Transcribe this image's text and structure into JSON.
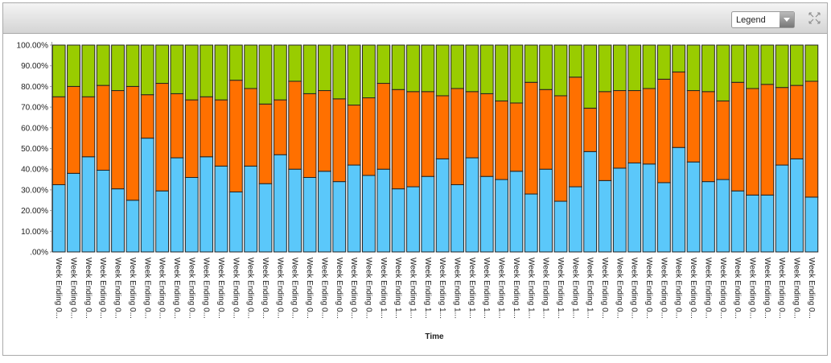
{
  "toolbar": {
    "legend_button": "Legend"
  },
  "chart_data": {
    "type": "stacked_bar",
    "x_label": "Time",
    "categories": [
      "Week Ending 0...",
      "Week Ending 0...",
      "Week Ending 0...",
      "Week Ending 0...",
      "Week Ending 0...",
      "Week Ending 0...",
      "Week Ending 0...",
      "Week Ending 0...",
      "Week Ending 0...",
      "Week Ending 0...",
      "Week Ending 0...",
      "Week Ending 0...",
      "Week Ending 0...",
      "Week Ending 0...",
      "Week Ending 0...",
      "Week Ending 0...",
      "Week Ending 0...",
      "Week Ending 0...",
      "Week Ending 0...",
      "Week Ending 0...",
      "Week Ending 0...",
      "Week Ending 0...",
      "Week Ending 1...",
      "Week Ending 1...",
      "Week Ending 1...",
      "Week Ending 1...",
      "Week Ending 1...",
      "Week Ending 1...",
      "Week Ending 1...",
      "Week Ending 1...",
      "Week Ending 1...",
      "Week Ending 1...",
      "Week Ending 1...",
      "Week Ending 1...",
      "Week Ending 1...",
      "Week Ending 1...",
      "Week Ending 1...",
      "Week Ending 0...",
      "Week Ending 0...",
      "Week Ending 0...",
      "Week Ending 0...",
      "Week Ending 0...",
      "Week Ending 0...",
      "Week Ending 0...",
      "Week Ending 0...",
      "Week Ending 0...",
      "Week Ending 0...",
      "Week Ending 0...",
      "Week Ending 0...",
      "Week Ending 0...",
      "Week Ending 0...",
      "Week Ending 0..."
    ],
    "series": [
      {
        "color": "#5bc8fa",
        "values": [
          32.5,
          38,
          46,
          39.5,
          30.5,
          25,
          55,
          29.5,
          45.5,
          36,
          46,
          41.5,
          29,
          41.5,
          33,
          47,
          40,
          36,
          39,
          34,
          42,
          37,
          40,
          30.5,
          31.5,
          36.5,
          45,
          32.5,
          45.5,
          36.5,
          35,
          39,
          28,
          40,
          24.5,
          31.5,
          48.5,
          34.5,
          40.5,
          43,
          42.5,
          33.5,
          50.5,
          43.5,
          34,
          35,
          29.5,
          27.5,
          27.5,
          42,
          45,
          26.5
        ]
      },
      {
        "color": "#ff7000",
        "values": [
          42.5,
          42,
          29,
          41,
          47.5,
          55,
          21,
          52,
          31,
          37.5,
          29,
          32,
          54,
          37.5,
          38.5,
          26.5,
          42.5,
          40.5,
          39,
          40,
          29,
          37.5,
          41.5,
          48,
          46,
          41,
          30.5,
          46.5,
          32,
          40,
          38,
          33,
          54,
          38.5,
          51,
          53,
          21,
          43,
          37.5,
          35,
          36.5,
          50,
          36.5,
          34.5,
          43.5,
          38,
          52.5,
          51.5,
          53.5,
          37.5,
          35.5,
          56
        ]
      },
      {
        "color": "#99cc00",
        "values": [
          25,
          20,
          25,
          19.5,
          22,
          20,
          24,
          18.5,
          23.5,
          26.5,
          25,
          26.5,
          17,
          21,
          28.5,
          26.5,
          17.5,
          23.5,
          22,
          26,
          29,
          25.5,
          18.5,
          21.5,
          22.5,
          22.5,
          24.5,
          21,
          22.5,
          23.5,
          27,
          28,
          18,
          21.5,
          24.5,
          15.5,
          30.5,
          22.5,
          22,
          22,
          21,
          16.5,
          13,
          22,
          22.5,
          27,
          18,
          21,
          19,
          20.5,
          19.5,
          17.5
        ]
      }
    ],
    "ylim": [
      0,
      100
    ],
    "yticks": [
      {
        "value": 0,
        "label": ".00%"
      },
      {
        "value": 10,
        "label": "10.00%"
      },
      {
        "value": 20,
        "label": "20.00%"
      },
      {
        "value": 30,
        "label": "30.00%"
      },
      {
        "value": 40,
        "label": "40.00%"
      },
      {
        "value": 50,
        "label": "50.00%"
      },
      {
        "value": 60,
        "label": "60.00%"
      },
      {
        "value": 70,
        "label": "70.00%"
      },
      {
        "value": 80,
        "label": "80.00%"
      },
      {
        "value": 90,
        "label": "90.00%"
      },
      {
        "value": 100,
        "label": "100.00%"
      }
    ]
  }
}
